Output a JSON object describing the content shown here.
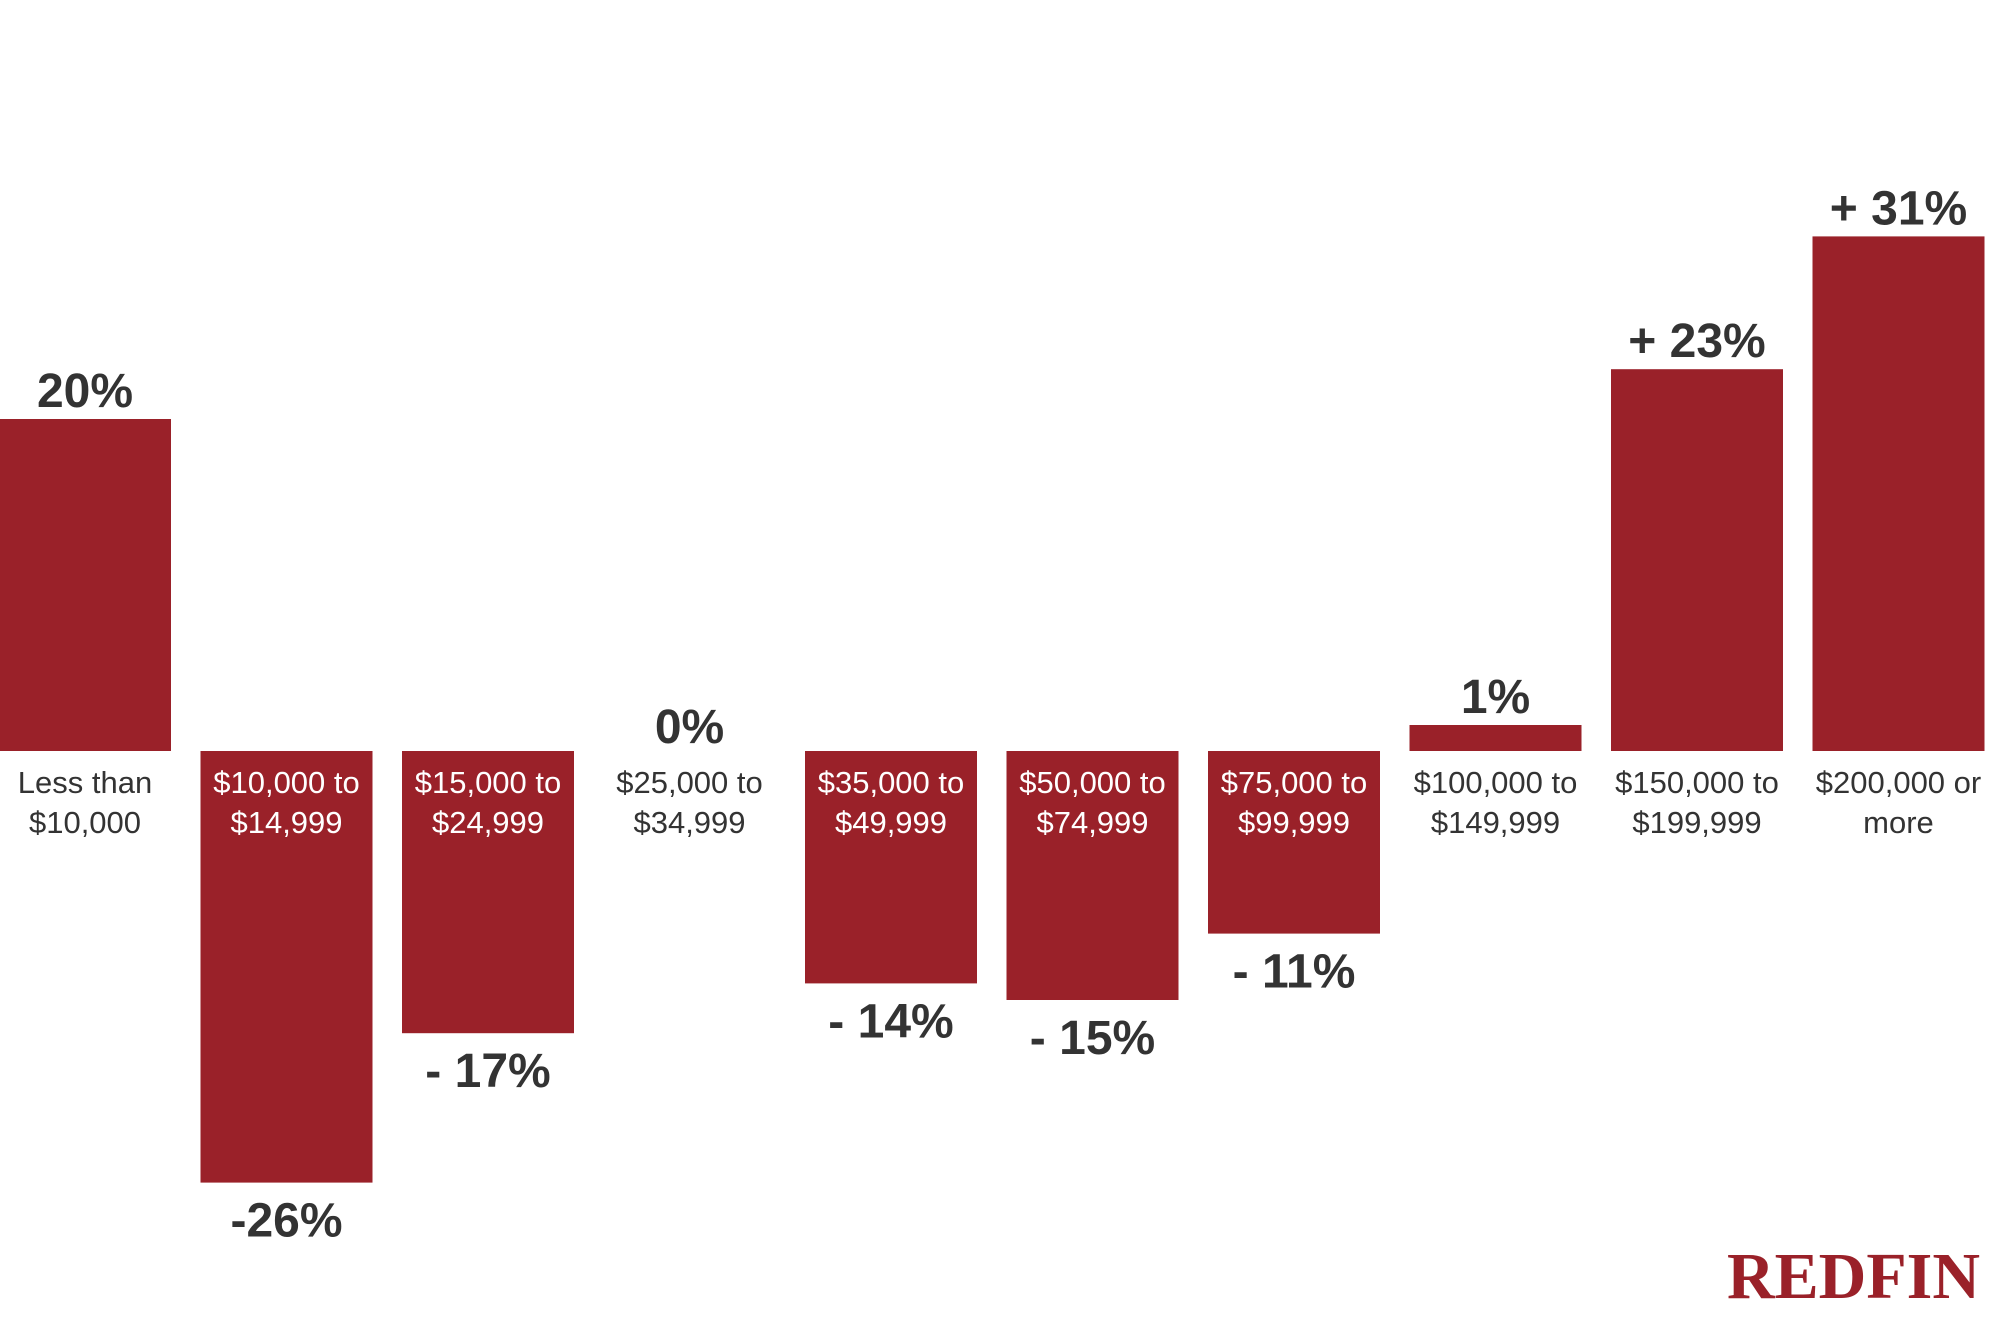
{
  "chart_data": {
    "type": "bar",
    "categories": [
      [
        "Less than",
        "$10,000"
      ],
      [
        "$10,000 to",
        "$14,999"
      ],
      [
        "$15,000 to",
        "$24,999"
      ],
      [
        "$25,000 to",
        "$34,999"
      ],
      [
        "$35,000 to",
        "$49,999"
      ],
      [
        "$50,000 to",
        "$74,999"
      ],
      [
        "$75,000 to",
        "$99,999"
      ],
      [
        "$100,000 to",
        "$149,999"
      ],
      [
        "$150,000 to",
        "$199,999"
      ],
      [
        "$200,000 or",
        "more"
      ]
    ],
    "values": [
      20,
      -26,
      -17,
      0,
      -14,
      -15,
      -11,
      1,
      23,
      31
    ],
    "value_labels": [
      "20%",
      "-26%",
      "- 17%",
      "0%",
      "- 14%",
      "- 15%",
      "- 11%",
      "1%",
      "+ 23%",
      "+ 31%"
    ],
    "title": "",
    "xlabel": "",
    "ylabel": "",
    "ylim": [
      -26,
      31
    ],
    "grid": false,
    "legend": "none"
  },
  "colors": {
    "bar": "#9a2129",
    "text_on_bar": "#ffffff",
    "text_off_bar": "#333333",
    "value_label": "#333333",
    "logo": "#9a2129"
  },
  "brand": {
    "logo_text": "REDFIN"
  }
}
